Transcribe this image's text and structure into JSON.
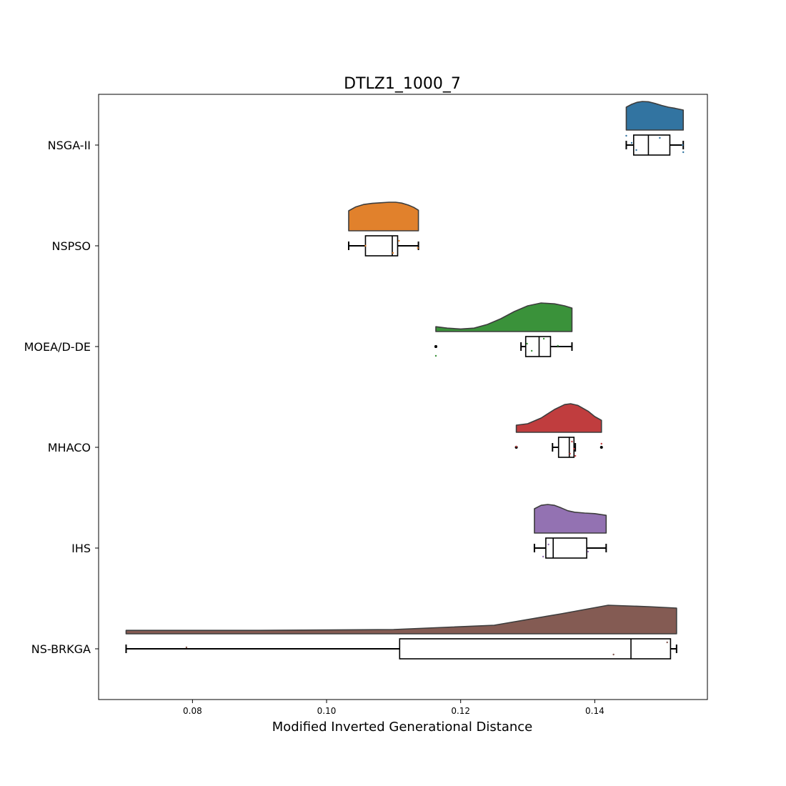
{
  "chart_data": {
    "type": "raincloud",
    "title": "DTLZ1_1000_7",
    "xlabel": "Modified Inverted Generational Distance",
    "ylabel": "",
    "xlim": [
      0.066,
      0.1568
    ],
    "xticks": [
      0.08,
      0.1,
      0.12,
      0.14
    ],
    "xtick_labels": [
      "0.08",
      "0.10",
      "0.12",
      "0.14"
    ],
    "grid": false,
    "series": [
      {
        "name": "NSGA-II",
        "color": "#3274a1",
        "box": {
          "whisker_low": 0.1447,
          "q1": 0.1458,
          "median": 0.148,
          "q3": 0.1512,
          "whisker_high": 0.1532
        },
        "outliers": [],
        "points": [
          0.1447,
          0.1455,
          0.1462,
          0.1497,
          0.1531,
          0.1532
        ],
        "density": [
          [
            0.1447,
            0.8
          ],
          [
            0.1455,
            0.9
          ],
          [
            0.1463,
            0.97
          ],
          [
            0.1471,
            1.0
          ],
          [
            0.148,
            0.99
          ],
          [
            0.149,
            0.93
          ],
          [
            0.15,
            0.86
          ],
          [
            0.151,
            0.8
          ],
          [
            0.152,
            0.76
          ],
          [
            0.1532,
            0.7
          ]
        ]
      },
      {
        "name": "NSPSO",
        "color": "#e1812c",
        "box": {
          "whisker_low": 0.1033,
          "q1": 0.1058,
          "median": 0.1098,
          "q3": 0.1106,
          "whisker_high": 0.1137
        },
        "outliers": [],
        "points": [
          0.1058,
          0.1099,
          0.1108,
          0.1136
        ],
        "density": [
          [
            0.1033,
            0.7
          ],
          [
            0.1043,
            0.83
          ],
          [
            0.1055,
            0.92
          ],
          [
            0.1068,
            0.96
          ],
          [
            0.108,
            0.98
          ],
          [
            0.1093,
            1.0
          ],
          [
            0.1103,
            1.0
          ],
          [
            0.1112,
            0.97
          ],
          [
            0.1122,
            0.9
          ],
          [
            0.113,
            0.82
          ],
          [
            0.1137,
            0.72
          ]
        ]
      },
      {
        "name": "MOEA/D-DE",
        "color": "#3a923a",
        "box": {
          "whisker_low": 0.129,
          "q1": 0.1297,
          "median": 0.1317,
          "q3": 0.1334,
          "whisker_high": 0.1366
        },
        "outliers": [
          0.1163,
          0.1163
        ],
        "points": [
          0.1163,
          0.1299,
          0.1306,
          0.1324,
          0.1345
        ],
        "density": [
          [
            0.1163,
            0.17
          ],
          [
            0.118,
            0.12
          ],
          [
            0.12,
            0.09
          ],
          [
            0.122,
            0.12
          ],
          [
            0.124,
            0.25
          ],
          [
            0.126,
            0.45
          ],
          [
            0.128,
            0.7
          ],
          [
            0.13,
            0.9
          ],
          [
            0.132,
            1.0
          ],
          [
            0.134,
            0.97
          ],
          [
            0.1355,
            0.9
          ],
          [
            0.1366,
            0.82
          ]
        ]
      },
      {
        "name": "MHACO",
        "color": "#c03d3e",
        "box": {
          "whisker_low": 0.1337,
          "q1": 0.1346,
          "median": 0.1362,
          "q3": 0.1369,
          "whisker_high": 0.1371
        },
        "outliers": [
          0.1283,
          0.141
        ],
        "points": [
          0.1283,
          0.1363,
          0.1366,
          0.1369,
          0.1371,
          0.141
        ],
        "density": [
          [
            0.1283,
            0.25
          ],
          [
            0.13,
            0.3
          ],
          [
            0.132,
            0.5
          ],
          [
            0.134,
            0.8
          ],
          [
            0.1355,
            0.97
          ],
          [
            0.1364,
            1.0
          ],
          [
            0.1375,
            0.94
          ],
          [
            0.139,
            0.74
          ],
          [
            0.14,
            0.55
          ],
          [
            0.141,
            0.42
          ]
        ]
      },
      {
        "name": "IHS",
        "color": "#9372b2",
        "box": {
          "whisker_low": 0.131,
          "q1": 0.1327,
          "median": 0.1338,
          "q3": 0.1388,
          "whisker_high": 0.1417
        },
        "outliers": [],
        "points": [
          0.1323,
          0.1331,
          0.139
        ],
        "density": [
          [
            0.131,
            0.85
          ],
          [
            0.132,
            0.97
          ],
          [
            0.133,
            1.0
          ],
          [
            0.134,
            0.97
          ],
          [
            0.135,
            0.88
          ],
          [
            0.136,
            0.78
          ],
          [
            0.137,
            0.73
          ],
          [
            0.1385,
            0.7
          ],
          [
            0.14,
            0.68
          ],
          [
            0.1417,
            0.62
          ]
        ]
      },
      {
        "name": "NS-BRKGA",
        "color": "#845b53",
        "box": {
          "whisker_low": 0.0701,
          "q1": 0.1109,
          "median": 0.1454,
          "q3": 0.1513,
          "whisker_high": 0.1522
        },
        "outliers": [],
        "points": [
          0.0791,
          0.1428,
          0.1508
        ],
        "density": [
          [
            0.0701,
            0.12
          ],
          [
            0.09,
            0.12
          ],
          [
            0.11,
            0.15
          ],
          [
            0.125,
            0.3
          ],
          [
            0.135,
            0.7
          ],
          [
            0.142,
            1.0
          ],
          [
            0.148,
            0.95
          ],
          [
            0.1522,
            0.9
          ]
        ]
      }
    ]
  }
}
